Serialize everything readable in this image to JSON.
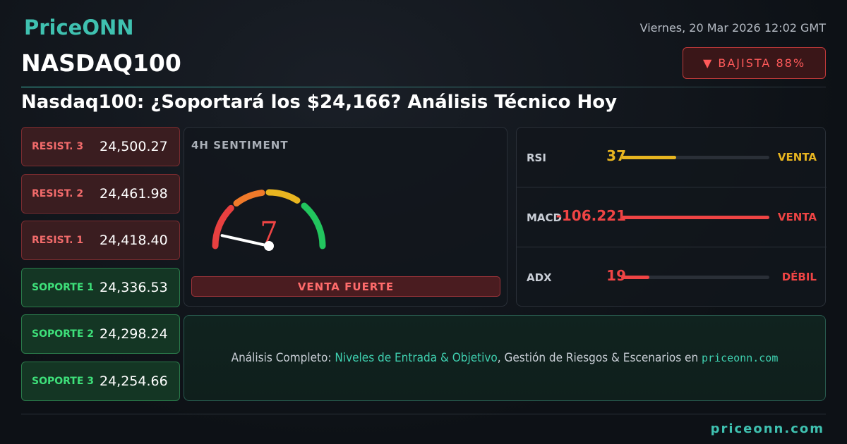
{
  "header": {
    "logo": "PriceONN",
    "date": "Viernes, 20 Mar 2026 12:02 GMT",
    "symbol": "NASDAQ100",
    "badge": "▼ BAJISTA 88%",
    "headline": "Nasdaq100: ¿Soportará los $24,166? Análisis Técnico Hoy"
  },
  "resistances": [
    {
      "label": "RESIST. 3",
      "value": "24,500.27"
    },
    {
      "label": "RESIST. 2",
      "value": "24,461.98"
    },
    {
      "label": "RESIST. 1",
      "value": "24,418.40"
    }
  ],
  "supports": [
    {
      "label": "SOPORTE 1",
      "value": "24,336.53"
    },
    {
      "label": "SOPORTE 2",
      "value": "24,298.24"
    },
    {
      "label": "SOPORTE 3",
      "value": "24,254.66"
    }
  ],
  "sentiment": {
    "title": "4H SENTIMENT",
    "value": 7,
    "signal": "VENTA FUERTE"
  },
  "indicators": [
    {
      "name": "RSI",
      "value": 37,
      "signal": "VENTA",
      "color": "#e8b520"
    },
    {
      "name": "MACD",
      "value": -106.221,
      "signal": "VENTA",
      "color": "#ef4444"
    },
    {
      "name": "ADX",
      "value": 19,
      "signal": "DÉBIL",
      "color": "#ef4444"
    }
  ],
  "cta": {
    "lead": "Análisis Completo:",
    "highlight": "Niveles de Entrada & Objetivo",
    "rest": ", Gestión de Riesgos & Escenarios en",
    "link": "priceonn.com"
  },
  "footer": "priceonn.com"
}
